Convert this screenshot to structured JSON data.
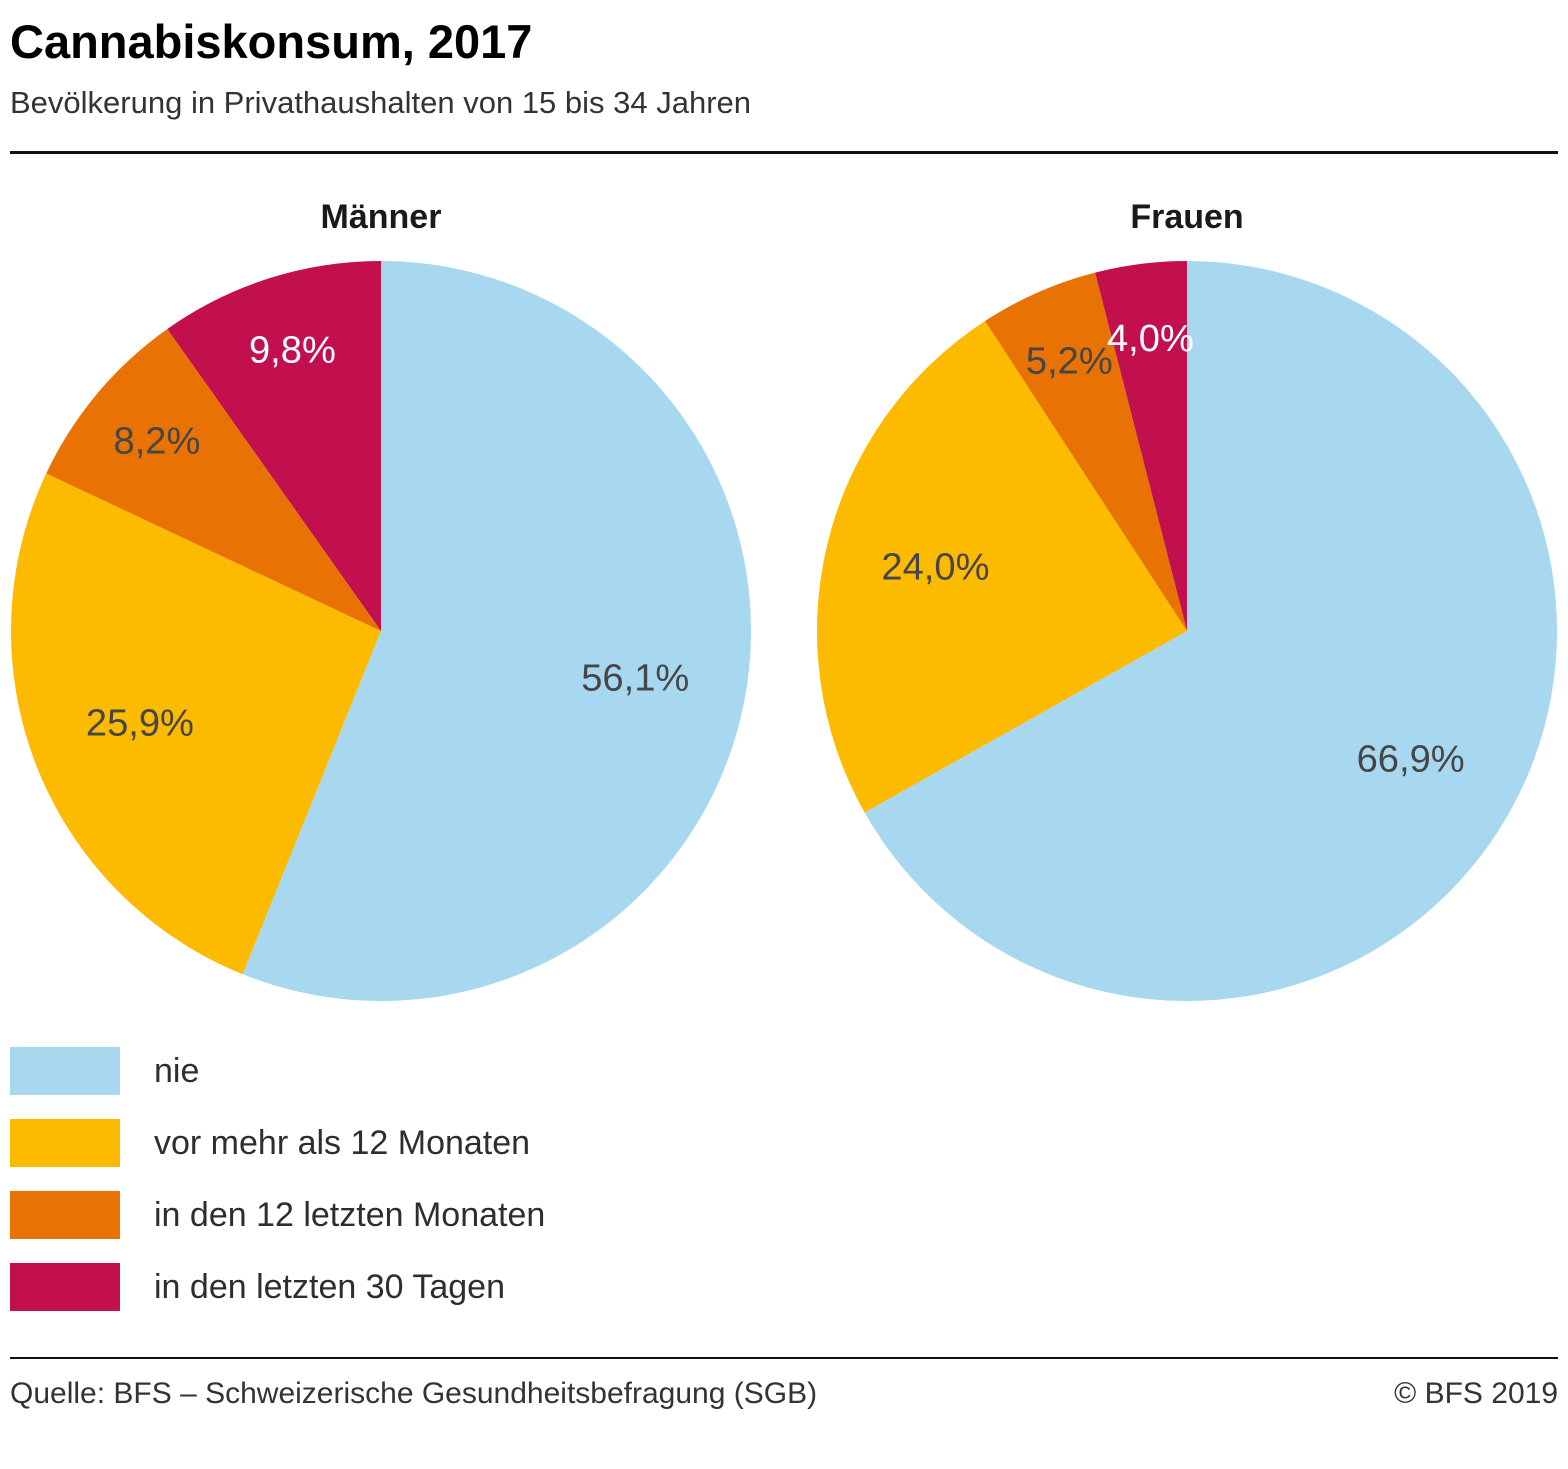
{
  "header": {
    "title": "Cannabiskonsum, 2017",
    "subtitle": "Bevölkerung in Privathaushalten von 15 bis 34 Jahren"
  },
  "chart_data": {
    "type": "pie",
    "categories": [
      "nie",
      "vor mehr als 12 Monaten",
      "in den 12 letzten Monaten",
      "in den letzten 30 Tagen"
    ],
    "colors": [
      "#a8d8f0",
      "#fcba00",
      "#e87304",
      "#c2104f"
    ],
    "direction": "clockwise",
    "start_angle_deg": 0,
    "charts": [
      {
        "title": "Männer",
        "values": [
          56.1,
          25.9,
          8.2,
          9.8
        ],
        "labels": [
          "56,1%",
          "25,9%",
          "8,2%",
          "9,8%"
        ],
        "label_colors": [
          "#464646",
          "#464646",
          "#464646",
          "#ffffff"
        ]
      },
      {
        "title": "Frauen",
        "values": [
          66.9,
          24.0,
          5.2,
          4.0
        ],
        "labels": [
          "66,9%",
          "24,0%",
          "5,2%",
          "4,0%"
        ],
        "label_colors": [
          "#464646",
          "#464646",
          "#464646",
          "#ffffff"
        ]
      }
    ]
  },
  "footer": {
    "source": "Quelle: BFS – Schweizerische Gesundheitsbefragung (SGB)",
    "copyright": "© BFS 2019"
  }
}
